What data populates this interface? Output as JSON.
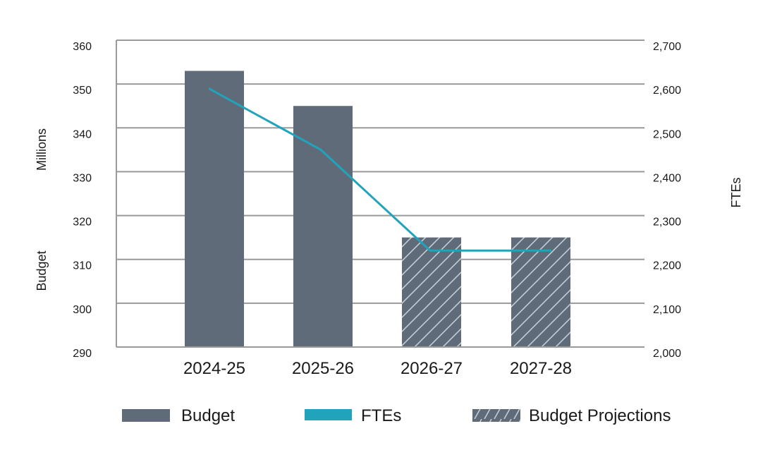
{
  "chart_data": {
    "type": "bar+line",
    "title": "",
    "categories": [
      "2024-25",
      "2025-26",
      "2026-27",
      "2027-28"
    ],
    "series": [
      {
        "name": "Budget",
        "type": "bar",
        "axis": "left",
        "values": [
          353,
          345,
          null,
          null
        ],
        "color": "#5f6b78"
      },
      {
        "name": "Budget Projections",
        "type": "bar",
        "axis": "left",
        "pattern": "diagonal-hatch",
        "values": [
          null,
          null,
          315,
          315
        ],
        "color": "#5f6b78",
        "hatch_color": "#c3ccd5"
      },
      {
        "name": "FTEs",
        "type": "line",
        "axis": "right",
        "values": [
          2590,
          2450,
          2220,
          2220
        ],
        "color": "#21a3bb"
      }
    ],
    "y_left": {
      "label_parts": [
        "Budget",
        "Millions"
      ],
      "range": [
        290,
        360
      ],
      "ticks": [
        290,
        300,
        310,
        320,
        330,
        340,
        350,
        360
      ],
      "tick_labels": [
        "290",
        "300",
        "310",
        "320",
        "330",
        "340",
        "350",
        "360"
      ]
    },
    "y_right": {
      "label": "FTEs",
      "range": [
        2000,
        2700
      ],
      "ticks": [
        2000,
        2100,
        2200,
        2300,
        2400,
        2500,
        2600,
        2700
      ],
      "tick_labels": [
        "2,000",
        "2,100",
        "2,200",
        "2,300",
        "2,400",
        "2,500",
        "2,600",
        "2,700"
      ]
    },
    "xlabel": "",
    "grid": true,
    "grid_color": "#9a9a9a",
    "legend": {
      "placement": "bottom",
      "items": [
        {
          "label": "Budget",
          "kind": "solid",
          "color": "#5f6b78"
        },
        {
          "label": "FTEs",
          "kind": "line",
          "color": "#21a3bb"
        },
        {
          "label": "Budget Projections",
          "kind": "hatch",
          "color": "#5f6b78"
        }
      ]
    }
  }
}
